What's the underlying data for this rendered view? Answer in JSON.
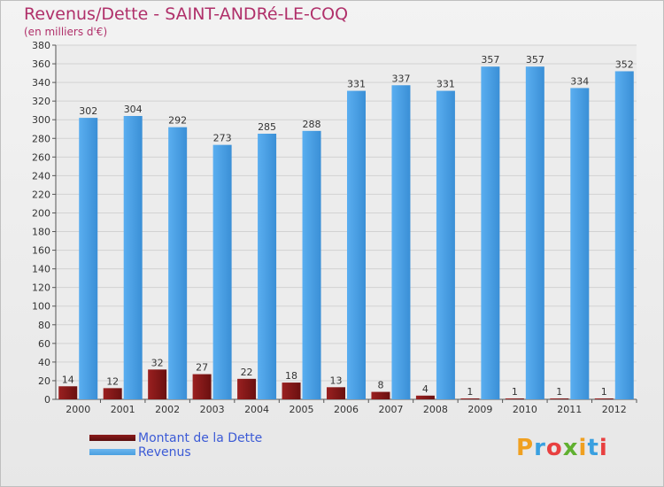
{
  "title": "Revenus/Dette - SAINT-ANDRé-LE-COQ",
  "subtitle": "(en milliers d'€)",
  "logo": {
    "text": "Proxiti",
    "colors": [
      "#f0a020",
      "#3aa0e0",
      "#e84040",
      "#60b030",
      "#f0a020",
      "#3aa0e0",
      "#e84040"
    ]
  },
  "chart_data": {
    "type": "bar",
    "categories": [
      "2000",
      "2001",
      "2002",
      "2003",
      "2004",
      "2005",
      "2006",
      "2007",
      "2008",
      "2009",
      "2010",
      "2011",
      "2012"
    ],
    "series": [
      {
        "name": "Montant de la Dette",
        "values": [
          14,
          12,
          32,
          27,
          22,
          18,
          13,
          8,
          4,
          1,
          1,
          1,
          1
        ],
        "color": "#8b1a1a"
      },
      {
        "name": "Revenus",
        "values": [
          302,
          304,
          292,
          273,
          285,
          288,
          331,
          337,
          331,
          357,
          357,
          334,
          352
        ],
        "color": "#4a9fe0"
      }
    ],
    "ylim": [
      0,
      380
    ],
    "yticks": [
      0,
      20,
      40,
      60,
      80,
      100,
      120,
      140,
      160,
      180,
      200,
      220,
      240,
      260,
      280,
      300,
      320,
      340,
      360,
      380
    ],
    "grid": true,
    "legend_position": "bottom-left"
  }
}
